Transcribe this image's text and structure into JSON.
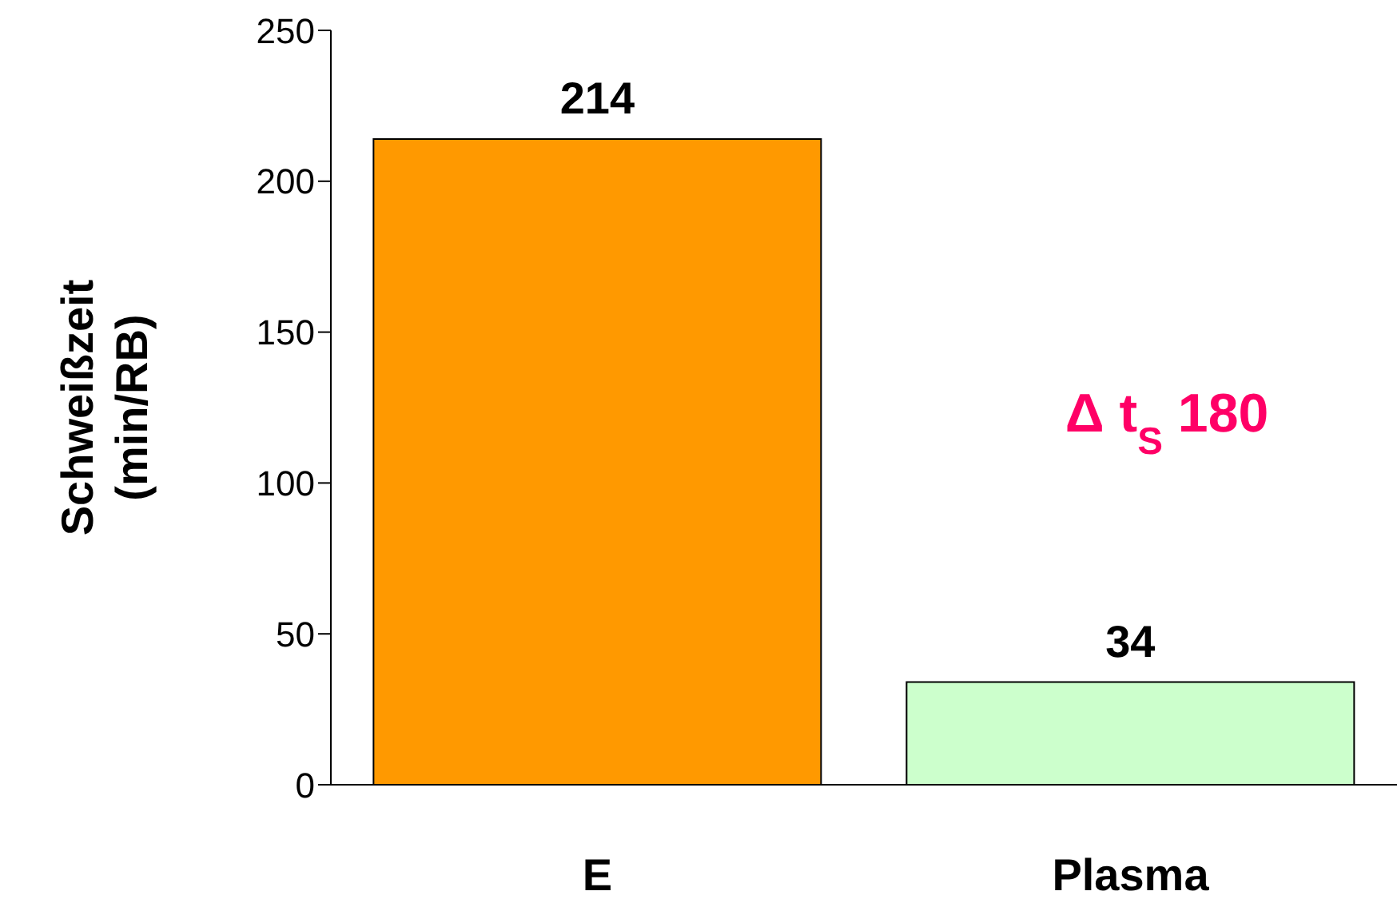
{
  "chart_data": {
    "type": "bar",
    "ylabel": "Schweißzeit\n(min/RB)",
    "categories": [
      "E",
      "Plasma"
    ],
    "values": [
      214,
      34
    ],
    "colors": [
      "#ff9900",
      "#ccffcc"
    ],
    "ylim": [
      0,
      250
    ],
    "yticks": [
      0,
      50,
      100,
      150,
      200,
      250
    ],
    "data_labels": true,
    "annotations": [
      "Δ t$_{S}$ 180"
    ]
  }
}
